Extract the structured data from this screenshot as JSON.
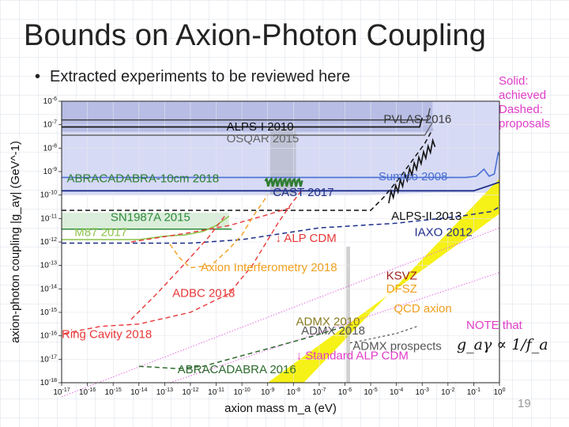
{
  "title": "Bounds on Axion-Photon Coupling",
  "bullet": "Extracted experiments to be reviewed here",
  "legend_note": [
    "Solid:",
    " achieved",
    "Dashed:",
    " proposals"
  ],
  "page_number": "19",
  "chart_data": {
    "type": "line",
    "xlabel": "axion mass m_a (eV)",
    "ylabel": "axion-photon coupling |g_aγ| (GeV^-1)",
    "x_scale": "log",
    "y_scale": "log",
    "xlim_exp": [
      -17,
      0
    ],
    "ylim_exp": [
      -18,
      -6
    ],
    "x_tick_labels": [
      "10^-17",
      "10^-16",
      "10^-15",
      "10^-14",
      "10^-13",
      "10^-12",
      "10^-11",
      "10^-10",
      "10^-9",
      "10^-8",
      "10^-7",
      "10^-6",
      "10^-5",
      "10^-4",
      "10^-3",
      "10^-2",
      "10^-1",
      "10^0"
    ],
    "y_tick_labels": [
      "10^-18",
      "10^-17",
      "10^-16",
      "10^-15",
      "10^-14",
      "10^-13",
      "10^-12",
      "10^-11",
      "10^-10",
      "10^-9",
      "10^-8",
      "10^-7",
      "10^-6"
    ],
    "experiments": [
      {
        "label": "PVLAS 2016",
        "color": "#3a3a3a",
        "style": "solid",
        "log_g": -6.8
      },
      {
        "label": "ALPS-I 2010",
        "color": "#111111",
        "style": "solid",
        "log_g": -7.1
      },
      {
        "label": "OSQAR 2015",
        "color": "#666666",
        "style": "solid",
        "log_g": -7.5
      },
      {
        "label": "ABRACADABRA-10cm 2018",
        "color": "#2e7d32",
        "style": "solid",
        "log_g": -9.4
      },
      {
        "label": "Sumico 2008",
        "color": "#4a6fd4",
        "style": "solid",
        "log_g": -9.2
      },
      {
        "label": "CAST 2017",
        "color": "#1e2e8a",
        "style": "solid",
        "log_g": -9.8
      },
      {
        "label": "SN1987A 2015",
        "color": "#2e8b3a",
        "style": "solid",
        "log_g": -10.8
      },
      {
        "label": "M87 2017",
        "color": "#8bc34a",
        "style": "solid",
        "log_g": -11.6
      },
      {
        "label": "ALPS-II 2013",
        "color": "#111111",
        "style": "dashed",
        "log_g": -10.7
      },
      {
        "label": "IAXO 2012",
        "color": "#1e2e8a",
        "style": "dashed",
        "log_g": -12.0
      },
      {
        "label": "↓ ALP CDM",
        "color": "#e83838",
        "style": "dashed",
        "log_g": -11.5
      },
      {
        "label": "Axion Interferometry 2018",
        "color": "#f0a020",
        "style": "dashed",
        "log_g": -13.2
      },
      {
        "label": "ADBC 2018",
        "color": "#e83838",
        "style": "dashed",
        "log_g": -14.4
      },
      {
        "label": "Ring Cavity 2018",
        "color": "#e83838",
        "style": "dashed",
        "log_g": -16.1
      },
      {
        "label": "KSVZ",
        "color": "#a02020",
        "style": "solid",
        "log_g": -13.6
      },
      {
        "label": "DFSZ",
        "color": "#f0a020",
        "style": "solid",
        "log_g": -14.1
      },
      {
        "label": "QCD axion",
        "color": "#f0a020",
        "style": "solid",
        "log_g": -14.9
      },
      {
        "label": "ADMX 2010",
        "color": "#8a7a20",
        "style": "solid",
        "log_g": -15.4
      },
      {
        "label": "ADMX 2018",
        "color": "#555555",
        "style": "solid",
        "log_g": -15.8
      },
      {
        "label": "ADMX prospects",
        "color": "#555555",
        "style": "dashed",
        "log_g": -16.6
      },
      {
        "label": "↓ Standard ALP CDM",
        "color": "#e03cc8",
        "style": "dashed",
        "log_g": -17.0
      },
      {
        "label": "ABRACADABRA 2016",
        "color": "#2e6b2e",
        "style": "dashed",
        "log_g": -17.3
      }
    ],
    "annotation": {
      "line1": "NOTE that",
      "formula": "g_aγ ∝ 1/f_a"
    }
  },
  "colors": {
    "region_top": "#c8cdf2",
    "region_lowgray": "#b8bccc",
    "sn_fill": "#d6ecd6",
    "yellow_band": "#f5f00a",
    "accent_magenta": "#e03cc8"
  }
}
